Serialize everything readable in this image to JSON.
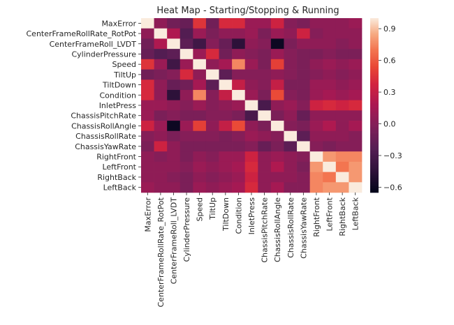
{
  "chart_data": {
    "type": "heatmap",
    "title": "Heat Map - Starting/Stopping & Running",
    "xlabel": "",
    "ylabel": "",
    "labels": [
      "MaxError",
      "CenterFrameRollRate_RotPot",
      "CenterFrameRoll_LVDT",
      "CylinderPressure",
      "Speed",
      "TiltUp",
      "TiltDown",
      "Condition",
      "InletPress",
      "ChassisPitchRate",
      "ChassisRollAngle",
      "ChassisRollRate",
      "ChassisYawRate",
      "RightFront",
      "LeftFront",
      "RightBack",
      "LeftBack"
    ],
    "values": [
      [
        1.0,
        0.05,
        -0.1,
        -0.15,
        0.45,
        -0.1,
        0.4,
        0.4,
        0.1,
        0.1,
        0.35,
        0.0,
        -0.05,
        0.05,
        0.05,
        0.05,
        0.1
      ],
      [
        0.05,
        1.0,
        0.2,
        -0.25,
        0.1,
        -0.05,
        0.05,
        0.05,
        0.1,
        -0.05,
        0.1,
        0.05,
        0.35,
        0.0,
        0.05,
        0.05,
        0.05
      ],
      [
        -0.1,
        0.2,
        1.0,
        -0.2,
        -0.35,
        0.0,
        -0.15,
        -0.45,
        0.05,
        0.0,
        -0.6,
        -0.05,
        0.05,
        0.05,
        0.05,
        0.0,
        0.05
      ],
      [
        -0.15,
        -0.25,
        -0.2,
        1.0,
        0.1,
        0.4,
        -0.1,
        0.05,
        0.0,
        -0.05,
        0.1,
        0.0,
        -0.05,
        -0.05,
        0.0,
        -0.05,
        -0.05
      ],
      [
        0.45,
        0.1,
        -0.35,
        0.1,
        1.0,
        0.05,
        0.15,
        0.75,
        0.1,
        -0.05,
        0.5,
        0.0,
        -0.05,
        0.05,
        0.1,
        0.05,
        0.1
      ],
      [
        -0.1,
        -0.05,
        0.0,
        0.4,
        0.05,
        1.0,
        -0.2,
        0.0,
        0.0,
        0.0,
        0.05,
        0.0,
        -0.05,
        0.0,
        0.05,
        0.0,
        0.05
      ],
      [
        0.4,
        0.05,
        -0.15,
        -0.1,
        0.15,
        -0.2,
        1.0,
        0.3,
        0.05,
        0.0,
        0.3,
        -0.05,
        -0.05,
        0.1,
        0.1,
        0.05,
        0.1
      ],
      [
        0.4,
        0.05,
        -0.45,
        0.05,
        0.75,
        0.0,
        0.3,
        1.0,
        0.1,
        -0.05,
        0.55,
        0.0,
        -0.05,
        0.1,
        0.15,
        0.1,
        0.15
      ],
      [
        0.1,
        0.1,
        0.05,
        0.0,
        0.1,
        0.0,
        0.05,
        0.1,
        1.0,
        -0.3,
        0.05,
        0.1,
        0.0,
        0.35,
        0.4,
        0.35,
        0.4
      ],
      [
        0.1,
        -0.05,
        0.0,
        -0.05,
        -0.05,
        0.0,
        0.0,
        -0.05,
        -0.3,
        1.0,
        -0.05,
        0.05,
        -0.15,
        0.05,
        0.05,
        0.05,
        0.05
      ],
      [
        0.35,
        0.1,
        -0.6,
        0.1,
        0.5,
        0.05,
        0.3,
        0.55,
        0.05,
        -0.05,
        1.0,
        0.0,
        -0.05,
        0.1,
        0.2,
        0.05,
        0.15
      ],
      [
        0.0,
        0.05,
        -0.05,
        0.0,
        0.0,
        0.0,
        -0.05,
        0.0,
        0.1,
        0.05,
        0.0,
        1.0,
        -0.2,
        0.05,
        0.05,
        0.05,
        0.0
      ],
      [
        -0.05,
        0.35,
        0.05,
        -0.05,
        -0.05,
        -0.05,
        -0.05,
        -0.05,
        0.0,
        -0.15,
        -0.05,
        -0.2,
        1.0,
        0.0,
        -0.05,
        0.0,
        0.0
      ],
      [
        0.05,
        0.0,
        0.05,
        -0.05,
        0.05,
        0.0,
        0.1,
        0.1,
        0.35,
        0.05,
        0.1,
        0.05,
        0.0,
        1.0,
        0.8,
        0.75,
        0.75
      ],
      [
        0.05,
        0.05,
        0.05,
        0.0,
        0.1,
        0.05,
        0.1,
        0.15,
        0.4,
        0.05,
        0.2,
        0.05,
        -0.05,
        0.8,
        1.0,
        0.7,
        0.8
      ],
      [
        0.05,
        0.05,
        0.0,
        -0.05,
        0.05,
        0.0,
        0.05,
        0.1,
        0.35,
        0.05,
        0.05,
        0.05,
        0.0,
        0.75,
        0.7,
        1.0,
        0.8
      ],
      [
        0.1,
        0.05,
        0.05,
        -0.05,
        0.1,
        0.05,
        0.1,
        0.15,
        0.4,
        0.05,
        0.15,
        0.0,
        0.0,
        0.75,
        0.8,
        0.8,
        1.0
      ]
    ],
    "vmin": -0.65,
    "vmax": 1.0,
    "colorbar_ticks": [
      -0.6,
      -0.3,
      0.0,
      0.3,
      0.6,
      0.9
    ],
    "colorbar_tick_labels": [
      "−0.6",
      "−0.3",
      "0.0",
      "0.3",
      "0.6",
      "0.9"
    ],
    "colormap": "rocket",
    "grid": false,
    "legend": "colorbar-right"
  }
}
